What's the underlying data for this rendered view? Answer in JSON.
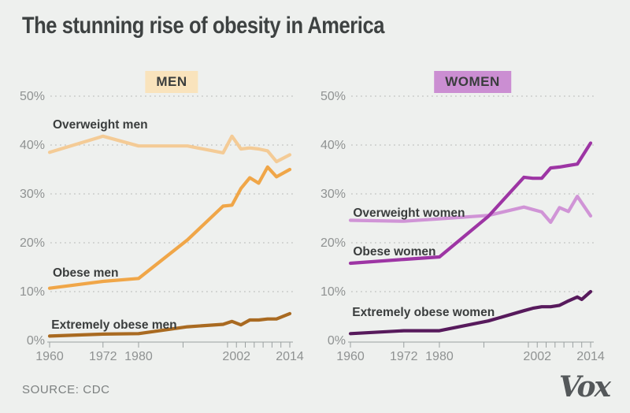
{
  "page": {
    "title": "The stunning rise of obesity in America",
    "source_label": "SOURCE: CDC",
    "brand": "Vox",
    "background": "#eef0ee"
  },
  "colors": {
    "background": "#eef0ee",
    "title_text": "#3e4242",
    "series_label_text": "#3a3d3d",
    "axis_text": "#8f9292",
    "gridline": "#b4b6b4",
    "axis_line": "#9aa0a0",
    "source_text": "#7c8080",
    "brand_text": "#54585a",
    "men_badge_bg": "#f9e3bc",
    "women_badge_bg": "#cb8ed2"
  },
  "chart_data": [
    {
      "type": "line",
      "title": "MEN",
      "badge_bg": "#f9e3bc",
      "xlim": [
        1960,
        2014
      ],
      "ylim": [
        0,
        52
      ],
      "yticks": [
        0,
        10,
        20,
        30,
        40,
        50
      ],
      "ytick_suffix": "%",
      "grid": "dotted",
      "legend_position": "inline-labels",
      "xticks_minor": [
        1960,
        1972,
        1980,
        1990,
        2000,
        2002,
        2004,
        2006,
        2008,
        2010,
        2012,
        2014
      ],
      "xtick_labels": [
        1960,
        1972,
        1980,
        2002,
        2014
      ],
      "series": [
        {
          "name": "Overweight men",
          "color": "#f4cb96",
          "label_year": 1960.7,
          "label_pct": 43.4,
          "points": [
            [
              1960,
              38.5
            ],
            [
              1972,
              41.8
            ],
            [
              1980,
              39.8
            ],
            [
              1991,
              39.8
            ],
            [
              1999,
              38.4
            ],
            [
              2001,
              41.8
            ],
            [
              2003,
              39.2
            ],
            [
              2005,
              39.4
            ],
            [
              2007,
              39.2
            ],
            [
              2009,
              38.8
            ],
            [
              2011,
              36.6
            ],
            [
              2014,
              38.0
            ]
          ]
        },
        {
          "name": "Obese men",
          "color": "#f0a648",
          "label_year": 1960.7,
          "label_pct": 13.1,
          "points": [
            [
              1960,
              10.7
            ],
            [
              1972,
              12.1
            ],
            [
              1980,
              12.7
            ],
            [
              1991,
              20.6
            ],
            [
              1999,
              27.5
            ],
            [
              2001,
              27.7
            ],
            [
              2003,
              31.1
            ],
            [
              2005,
              33.3
            ],
            [
              2007,
              32.2
            ],
            [
              2009,
              35.5
            ],
            [
              2011,
              33.5
            ],
            [
              2014,
              35.0
            ]
          ]
        },
        {
          "name": "Extremely obese men",
          "color": "#a96a21",
          "label_year": 1960.4,
          "label_pct": 2.4,
          "points": [
            [
              1960,
              0.9
            ],
            [
              1972,
              1.3
            ],
            [
              1980,
              1.4
            ],
            [
              1991,
              2.8
            ],
            [
              1999,
              3.3
            ],
            [
              2001,
              3.9
            ],
            [
              2003,
              3.2
            ],
            [
              2005,
              4.2
            ],
            [
              2007,
              4.2
            ],
            [
              2009,
              4.4
            ],
            [
              2011,
              4.4
            ],
            [
              2014,
              5.5
            ]
          ]
        }
      ]
    },
    {
      "type": "line",
      "title": "WOMEN",
      "badge_bg": "#cb8ed2",
      "xlim": [
        1960,
        2014
      ],
      "ylim": [
        0,
        52
      ],
      "yticks": [
        0,
        10,
        20,
        30,
        40,
        50
      ],
      "ytick_suffix": "%",
      "grid": "dotted",
      "legend_position": "inline-labels",
      "xticks_minor": [
        1960,
        1972,
        1980,
        1990,
        2000,
        2002,
        2004,
        2006,
        2008,
        2010,
        2012,
        2014
      ],
      "xtick_labels": [
        1960,
        1972,
        1980,
        2002,
        2014
      ],
      "series": [
        {
          "name": "Overweight women",
          "color": "#d094d6",
          "label_year": 1960.6,
          "label_pct": 25.3,
          "points": [
            [
              1960,
              24.6
            ],
            [
              1972,
              24.4
            ],
            [
              1980,
              24.9
            ],
            [
              1991,
              25.6
            ],
            [
              1999,
              27.3
            ],
            [
              2001,
              26.8
            ],
            [
              2003,
              26.3
            ],
            [
              2005,
              24.2
            ],
            [
              2007,
              27.2
            ],
            [
              2009,
              26.4
            ],
            [
              2011,
              29.5
            ],
            [
              2014,
              25.5
            ]
          ]
        },
        {
          "name": "Obese women",
          "color": "#9d35a4",
          "label_year": 1960.6,
          "label_pct": 17.4,
          "points": [
            [
              1960,
              15.8
            ],
            [
              1972,
              16.6
            ],
            [
              1980,
              17.1
            ],
            [
              1991,
              25.4
            ],
            [
              1999,
              33.4
            ],
            [
              2001,
              33.2
            ],
            [
              2003,
              33.2
            ],
            [
              2005,
              35.3
            ],
            [
              2007,
              35.5
            ],
            [
              2009,
              35.8
            ],
            [
              2011,
              36.1
            ],
            [
              2014,
              40.4
            ]
          ]
        },
        {
          "name": "Extremely obese women",
          "color": "#571a5c",
          "label_year": 1960.4,
          "label_pct": 5.0,
          "points": [
            [
              1960,
              1.4
            ],
            [
              1972,
              2.0
            ],
            [
              1980,
              2.0
            ],
            [
              1991,
              4.0
            ],
            [
              1999,
              6.1
            ],
            [
              2001,
              6.6
            ],
            [
              2003,
              6.9
            ],
            [
              2005,
              6.9
            ],
            [
              2007,
              7.2
            ],
            [
              2009,
              8.1
            ],
            [
              2011,
              8.9
            ],
            [
              2012,
              8.4
            ],
            [
              2014,
              10.0
            ]
          ]
        }
      ]
    }
  ]
}
